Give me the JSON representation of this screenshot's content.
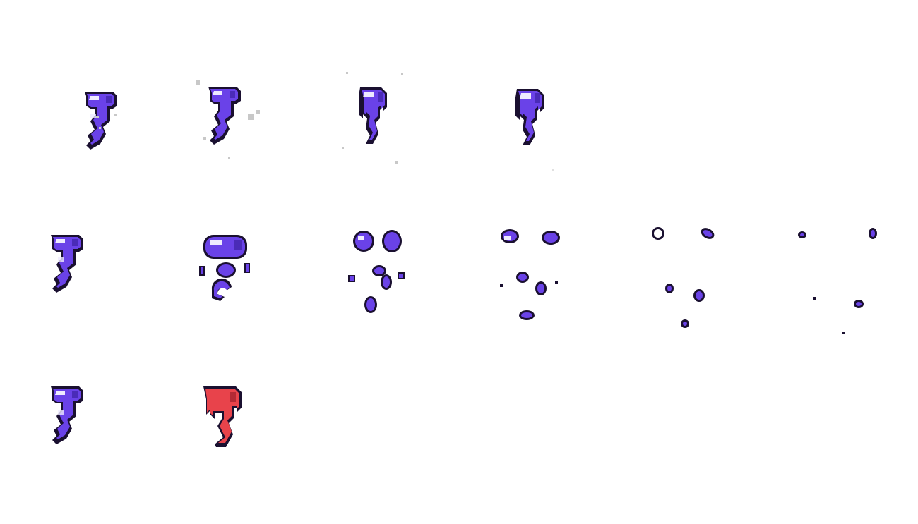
{
  "sheet": {
    "background": "#ffffff",
    "palette": {
      "outline": "#1a1030",
      "body": "#6a42e8",
      "shade": "#4a2bb8",
      "highlight": "#eeeaff",
      "hurt_body": "#e8434b",
      "hurt_shade": "#b32a35",
      "sparkle": "#c8c8c8"
    },
    "rows": [
      {
        "animation": "idle",
        "frames": [
          {
            "sprite": "ghost-curl-icon",
            "sparkle": 1
          },
          {
            "sprite": "ghost-curl-icon",
            "sparkle": 2
          },
          {
            "sprite": "ghost-drip-icon",
            "sparkle": 2
          },
          {
            "sprite": "ghost-drip-icon",
            "sparkle": 1
          }
        ]
      },
      {
        "animation": "death",
        "frames": [
          {
            "sprite": "ghost-curl-icon",
            "burst": 0
          },
          {
            "sprite": "ghost-split-icon",
            "burst": 1
          },
          {
            "sprite": "ghost-blobs-icon",
            "burst": 2
          },
          {
            "sprite": "ghost-fragments-icon",
            "burst": 3
          },
          {
            "sprite": "ghost-bits-icon",
            "burst": 4
          },
          {
            "sprite": "ghost-specks-icon",
            "burst": 5
          }
        ]
      },
      {
        "animation": "hurt",
        "frames": [
          {
            "sprite": "ghost-curl-icon",
            "tint": "body"
          },
          {
            "sprite": "ghost-silhouette-icon",
            "tint": "hurt_body"
          }
        ]
      }
    ]
  }
}
